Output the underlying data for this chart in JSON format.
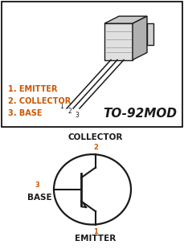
{
  "bg_color": "#ffffff",
  "border_color": "#000000",
  "orange_color": "#cc5500",
  "dark_color": "#1a1a1a",
  "pin_labels": [
    "1. EMITTER",
    "2. COLLECTOR",
    "3. BASE"
  ],
  "package_name": "TO-92MOD",
  "transistor_labels": {
    "collector": "COLLECTOR",
    "base": "BASE",
    "emitter": "EMITTER",
    "pin_collector": "2",
    "pin_base": "3",
    "pin_emitter": "1"
  }
}
